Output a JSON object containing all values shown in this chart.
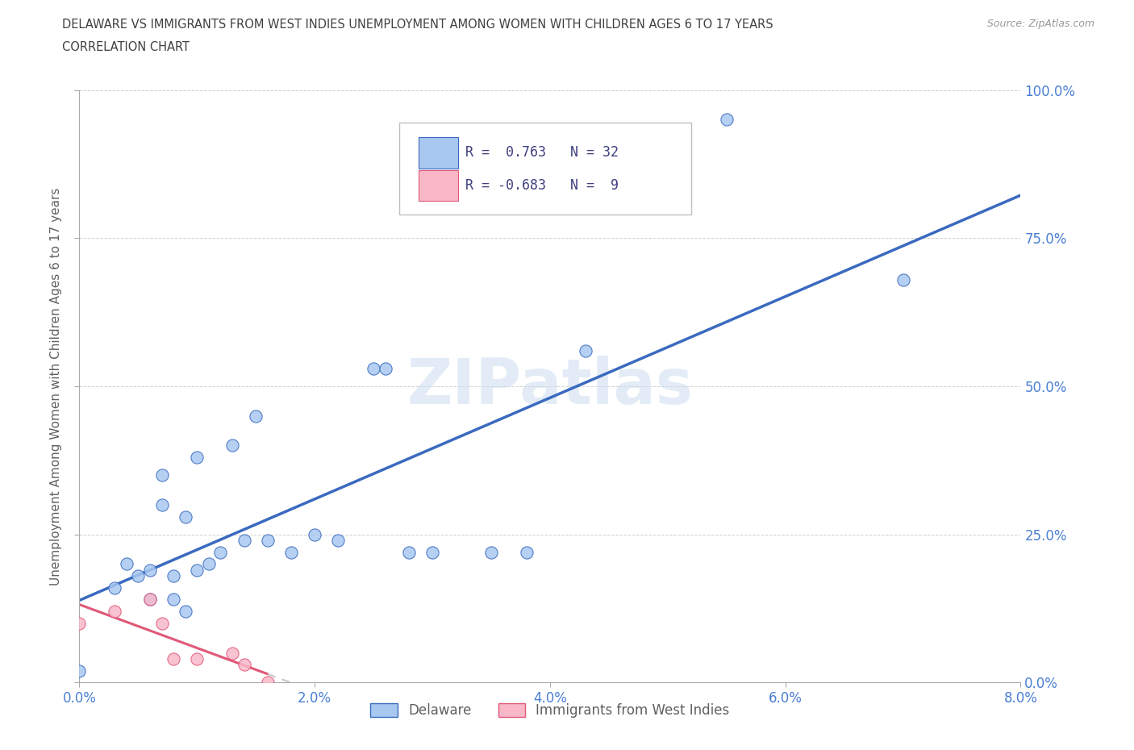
{
  "title_line1": "DELAWARE VS IMMIGRANTS FROM WEST INDIES UNEMPLOYMENT AMONG WOMEN WITH CHILDREN AGES 6 TO 17 YEARS",
  "title_line2": "CORRELATION CHART",
  "source": "Source: ZipAtlas.com",
  "ylabel": "Unemployment Among Women with Children Ages 6 to 17 years",
  "xlim": [
    0.0,
    0.08
  ],
  "ylim": [
    0.0,
    1.0
  ],
  "xticks": [
    0.0,
    0.02,
    0.04,
    0.06,
    0.08
  ],
  "yticks": [
    0.0,
    0.25,
    0.5,
    0.75,
    1.0
  ],
  "xticklabels": [
    "0.0%",
    "2.0%",
    "4.0%",
    "6.0%",
    "8.0%"
  ],
  "yticklabels_right": [
    "0.0%",
    "25.0%",
    "50.0%",
    "75.0%",
    "100.0%"
  ],
  "watermark": "ZIPatlas",
  "delaware_color": "#a8c8f0",
  "west_indies_color": "#f8b8c8",
  "delaware_line_color": "#3a6abf",
  "west_indies_line_color": "#e05878",
  "west_indies_dash_color": "#c8c8c8",
  "R_delaware": 0.763,
  "N_delaware": 32,
  "R_west_indies": -0.683,
  "N_west_indies": 9,
  "delaware_scatter_x": [
    0.0,
    0.003,
    0.004,
    0.005,
    0.006,
    0.006,
    0.007,
    0.007,
    0.008,
    0.008,
    0.009,
    0.009,
    0.01,
    0.01,
    0.011,
    0.012,
    0.013,
    0.014,
    0.015,
    0.016,
    0.018,
    0.02,
    0.022,
    0.025,
    0.026,
    0.028,
    0.03,
    0.035,
    0.038,
    0.043,
    0.055,
    0.07
  ],
  "delaware_scatter_y": [
    0.02,
    0.16,
    0.2,
    0.18,
    0.14,
    0.19,
    0.3,
    0.35,
    0.14,
    0.18,
    0.12,
    0.28,
    0.38,
    0.19,
    0.2,
    0.22,
    0.4,
    0.24,
    0.45,
    0.24,
    0.22,
    0.25,
    0.24,
    0.53,
    0.53,
    0.22,
    0.22,
    0.22,
    0.22,
    0.56,
    0.95,
    0.68
  ],
  "west_indies_scatter_x": [
    0.0,
    0.003,
    0.006,
    0.007,
    0.008,
    0.01,
    0.013,
    0.014,
    0.016
  ],
  "west_indies_scatter_y": [
    0.1,
    0.12,
    0.14,
    0.1,
    0.04,
    0.04,
    0.05,
    0.03,
    0.0
  ],
  "background_color": "#ffffff",
  "grid_color": "#d0d0d0",
  "title_color": "#404040",
  "axis_color": "#606060",
  "tick_color": "#4a7fd4",
  "legend_label_delaware": "Delaware",
  "legend_label_west_indies": "Immigrants from West Indies",
  "legend_text_color": "#404080"
}
